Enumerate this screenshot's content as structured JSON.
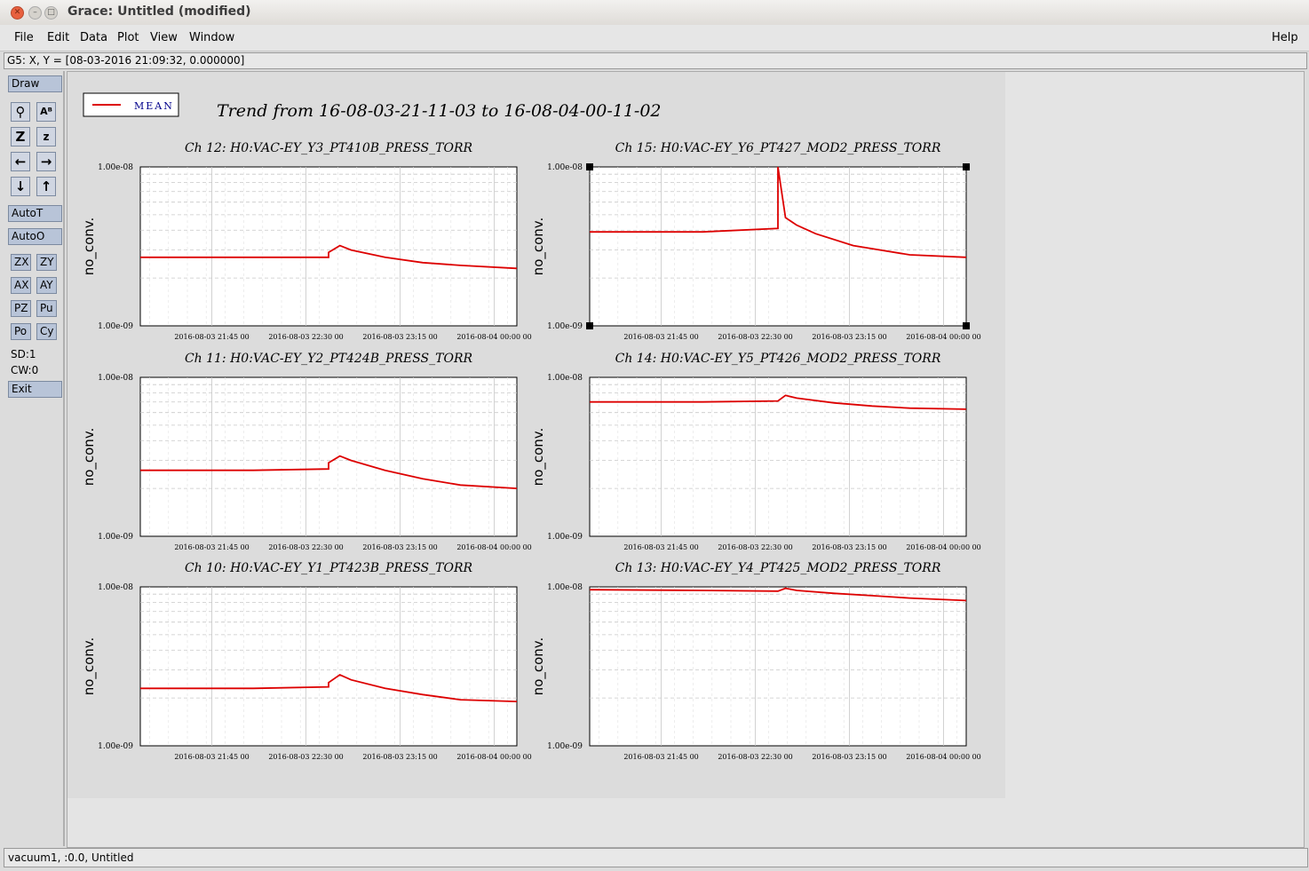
{
  "window": {
    "title": "Grace: Untitled (modified)"
  },
  "menu": [
    "File",
    "Edit",
    "Data",
    "Plot",
    "View",
    "Window"
  ],
  "help": "Help",
  "locator": "G5: X, Y = [08-03-2016 21:09:32, 0.000000]",
  "toolbar": {
    "draw": "Draw",
    "autot": "AutoT",
    "autoo": "AutoO",
    "pairs": [
      [
        "ZX",
        "ZY"
      ],
      [
        "AX",
        "AY"
      ],
      [
        "PZ",
        "Pu"
      ],
      [
        "Po",
        "Cy"
      ]
    ],
    "sd": "SD:1",
    "cw": "CW:0",
    "exit": "Exit"
  },
  "plot_title": "Trend from 16-08-03-21-11-03 to 16-08-04-00-11-02",
  "legend": "MEAN",
  "status": "vacuum1, :0.0, Untitled",
  "colors": {
    "series": "#dd0000",
    "legend_text": "#00008b"
  },
  "chart_data": [
    {
      "type": "line",
      "title": "Ch 12: H0:VAC-EY_Y3_PT410B_PRESS_TORR",
      "ylabel": "no_conv.",
      "yticks": [
        "1.00e-08",
        "1.00e-09"
      ],
      "xticks": [
        "2016-08-03 21:45 00",
        "2016-08-03 22:30 00",
        "2016-08-03 23:15 00",
        "2016-08-04 00:00 00"
      ],
      "series": [
        {
          "name": "MEAN",
          "x": [
            0,
            0.3,
            0.5,
            0.5,
            0.53,
            0.56,
            0.65,
            0.75,
            0.85,
            1
          ],
          "y": [
            2.7,
            2.7,
            2.7,
            2.9,
            3.2,
            3.0,
            2.7,
            2.5,
            2.4,
            2.3
          ]
        }
      ]
    },
    {
      "type": "line",
      "title": "Ch 15: H0:VAC-EY_Y6_PT427_MOD2_PRESS_TORR",
      "ylabel": "no_conv.",
      "yticks": [
        "1.00e-08",
        "1.00e-09"
      ],
      "xticks": [
        "2016-08-03 21:45 00",
        "2016-08-03 22:30 00",
        "2016-08-03 23:15 00",
        "2016-08-04 00:00 00"
      ],
      "series": [
        {
          "name": "MEAN",
          "x": [
            0,
            0.3,
            0.5,
            0.5,
            0.52,
            0.55,
            0.6,
            0.7,
            0.85,
            1
          ],
          "y": [
            3.9,
            3.9,
            4.1,
            10,
            4.8,
            4.3,
            3.8,
            3.2,
            2.8,
            2.7
          ]
        }
      ]
    },
    {
      "type": "line",
      "title": "Ch 11: H0:VAC-EY_Y2_PT424B_PRESS_TORR",
      "ylabel": "no_conv.",
      "yticks": [
        "1.00e-08",
        "1.00e-09"
      ],
      "xticks": [
        "2016-08-03 21:45 00",
        "2016-08-03 22:30 00",
        "2016-08-03 23:15 00",
        "2016-08-04 00:00 00"
      ],
      "series": [
        {
          "name": "MEAN",
          "x": [
            0,
            0.3,
            0.5,
            0.5,
            0.53,
            0.56,
            0.65,
            0.75,
            0.85,
            1
          ],
          "y": [
            2.6,
            2.6,
            2.65,
            2.9,
            3.2,
            3.0,
            2.6,
            2.3,
            2.1,
            2.0
          ]
        }
      ]
    },
    {
      "type": "line",
      "title": "Ch 14: H0:VAC-EY_Y5_PT426_MOD2_PRESS_TORR",
      "ylabel": "no_conv.",
      "yticks": [
        "1.00e-08",
        "1.00e-09"
      ],
      "xticks": [
        "2016-08-03 21:45 00",
        "2016-08-03 22:30 00",
        "2016-08-03 23:15 00",
        "2016-08-04 00:00 00"
      ],
      "series": [
        {
          "name": "MEAN",
          "x": [
            0,
            0.3,
            0.5,
            0.52,
            0.55,
            0.65,
            0.75,
            0.85,
            1
          ],
          "y": [
            7.0,
            7.0,
            7.1,
            7.7,
            7.4,
            6.9,
            6.6,
            6.4,
            6.3
          ]
        }
      ]
    },
    {
      "type": "line",
      "title": "Ch 10: H0:VAC-EY_Y1_PT423B_PRESS_TORR",
      "ylabel": "no_conv.",
      "yticks": [
        "1.00e-08",
        "1.00e-09"
      ],
      "xticks": [
        "2016-08-03 21:45 00",
        "2016-08-03 22:30 00",
        "2016-08-03 23:15 00",
        "2016-08-04 00:00 00"
      ],
      "series": [
        {
          "name": "MEAN",
          "x": [
            0,
            0.3,
            0.5,
            0.5,
            0.53,
            0.56,
            0.65,
            0.75,
            0.85,
            1
          ],
          "y": [
            2.3,
            2.3,
            2.35,
            2.5,
            2.8,
            2.6,
            2.3,
            2.1,
            1.95,
            1.9
          ]
        }
      ]
    },
    {
      "type": "line",
      "title": "Ch 13: H0:VAC-EY_Y4_PT425_MOD2_PRESS_TORR",
      "ylabel": "no_conv.",
      "yticks": [
        "1.00e-08",
        "1.00e-09"
      ],
      "xticks": [
        "2016-08-03 21:45 00",
        "2016-08-03 22:30 00",
        "2016-08-03 23:15 00",
        "2016-08-04 00:00 00"
      ],
      "series": [
        {
          "name": "MEAN",
          "x": [
            0,
            0.3,
            0.5,
            0.52,
            0.55,
            0.65,
            0.75,
            0.85,
            1
          ],
          "y": [
            9.6,
            9.5,
            9.4,
            9.8,
            9.5,
            9.1,
            8.8,
            8.5,
            8.2
          ]
        }
      ]
    }
  ]
}
